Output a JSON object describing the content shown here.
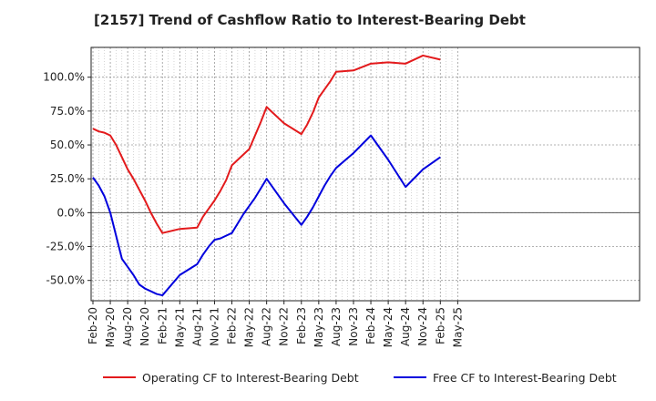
{
  "chart_data": {
    "type": "line",
    "title": "[2157]  Trend of Cashflow Ratio to Interest-Bearing Debt",
    "xlabel": "",
    "ylabel": "",
    "x_ticks": [
      "Feb-20",
      "May-20",
      "Aug-20",
      "Nov-20",
      "Feb-21",
      "May-21",
      "Aug-21",
      "Nov-21",
      "Feb-22",
      "May-22",
      "Aug-22",
      "Nov-22",
      "Feb-23",
      "May-23",
      "Aug-23",
      "Nov-23",
      "Feb-24",
      "May-24",
      "Aug-24",
      "Nov-24",
      "Feb-25",
      "May-25"
    ],
    "y_ticks": [
      "-50.0%",
      "-25.0%",
      "0.0%",
      "25.0%",
      "50.0%",
      "75.0%",
      "100.0%"
    ],
    "y_tick_values": [
      -50,
      -25,
      0,
      25,
      50,
      75,
      100
    ],
    "ylim": [
      -65,
      122
    ],
    "grid": true,
    "legend_position": "bottom",
    "series": [
      {
        "name": "Operating CF to Interest-Bearing Debt",
        "color": "#e31a1c",
        "x": [
          "Feb-20",
          "Mar-20",
          "Apr-20",
          "May-20",
          "Jun-20",
          "Jul-20",
          "Aug-20",
          "Sep-20",
          "Oct-20",
          "Nov-20",
          "Dec-20",
          "Jan-21",
          "Feb-21",
          "May-21",
          "Aug-21",
          "Sep-21",
          "Oct-21",
          "Nov-21",
          "Dec-21",
          "Jan-22",
          "Feb-22",
          "May-22",
          "Jun-22",
          "Jul-22",
          "Aug-22",
          "Sep-22",
          "Oct-22",
          "Nov-22",
          "Feb-23",
          "Mar-23",
          "Apr-23",
          "May-23",
          "Jun-23",
          "Jul-23",
          "Aug-23",
          "Nov-23",
          "Feb-24",
          "May-24",
          "Aug-24",
          "Nov-24",
          "Feb-25"
        ],
        "values": [
          62,
          60,
          59,
          57,
          50,
          41,
          32,
          25,
          17,
          9,
          0,
          -8,
          -15,
          -12,
          -11,
          -3,
          3,
          9,
          16,
          24,
          35,
          47,
          57,
          67,
          78,
          74,
          70,
          66,
          58,
          65,
          74,
          85,
          91,
          97,
          104,
          105,
          110,
          111,
          110,
          116,
          113
        ]
      },
      {
        "name": "Free CF to Interest-Bearing Debt",
        "color": "#0000dd",
        "x": [
          "Feb-20",
          "Mar-20",
          "Apr-20",
          "May-20",
          "Jun-20",
          "Jul-20",
          "Aug-20",
          "Sep-20",
          "Oct-20",
          "Nov-20",
          "Dec-20",
          "Jan-21",
          "Feb-21",
          "May-21",
          "Aug-21",
          "Sep-21",
          "Oct-21",
          "Nov-21",
          "Dec-21",
          "Jan-22",
          "Feb-22",
          "Mar-22",
          "Apr-22",
          "May-22",
          "Jun-22",
          "Jul-22",
          "Aug-22",
          "Nov-22",
          "Feb-23",
          "Mar-23",
          "Apr-23",
          "May-23",
          "Jun-23",
          "Jul-23",
          "Aug-23",
          "Nov-23",
          "Feb-24",
          "May-24",
          "Aug-24",
          "Nov-24",
          "Feb-25"
        ],
        "values": [
          26,
          20,
          12,
          0,
          -17,
          -34,
          -40,
          -46,
          -53,
          -56,
          -58,
          -60,
          -61,
          -46,
          -38,
          -31,
          -25,
          -20,
          -19,
          -17,
          -15,
          -8,
          -1,
          5,
          11,
          18,
          25,
          7,
          -9,
          -3,
          4,
          12,
          20,
          27,
          33,
          44,
          57,
          39,
          19,
          32,
          41
        ]
      }
    ]
  }
}
